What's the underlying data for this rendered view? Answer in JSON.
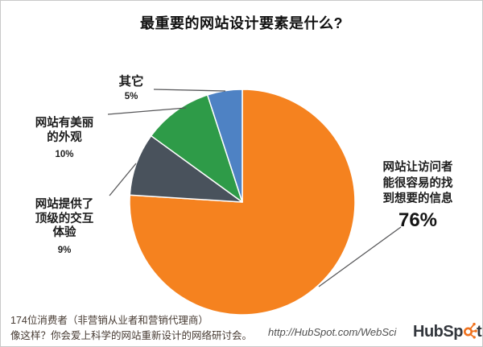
{
  "title": "最重要的网站设计要素是什么?",
  "chart_data": {
    "type": "pie",
    "title": "最重要的网站设计要素是什么?",
    "direction": "clockwise",
    "start_angle": "12-o-clock",
    "slice_border_color": "#FFFFFF",
    "leader_line_color": "#58585a",
    "slices": [
      {
        "label": "网站让访问者能很容易的找到想要的信息",
        "value": 76,
        "color": "#F5821F"
      },
      {
        "label": "网站提供了顶级的交互体验",
        "value": 9,
        "color": "#49525C"
      },
      {
        "label": "网站有美丽的外观",
        "value": 10,
        "color": "#2E9B48"
      },
      {
        "label": "其它",
        "value": 5,
        "color": "#4E82C4"
      }
    ]
  },
  "labels": {
    "other": {
      "lines": [
        "其它"
      ],
      "pct": "5%"
    },
    "beauty": {
      "lines": [
        "网站有美丽",
        "的外观"
      ],
      "pct": "10%"
    },
    "interaction": {
      "lines": [
        "网站提供了",
        "顶级的交互",
        "体验"
      ],
      "pct": "9%"
    },
    "info": {
      "lines": [
        "网站让访问者",
        "能很容易的找",
        "到想要的信息"
      ],
      "pct": "76%"
    }
  },
  "footer": {
    "line1": "174位消费者（非营销从业者和营销代理商）",
    "line2": "像这样？你会爱上科学的网站重新设计的网络研讨会。",
    "url": "http://HubSpot.com/WebSci",
    "logo": {
      "part1": "HubSp",
      "part2": "t",
      "color": "#F0721E",
      "text_color": "#33373d"
    }
  }
}
